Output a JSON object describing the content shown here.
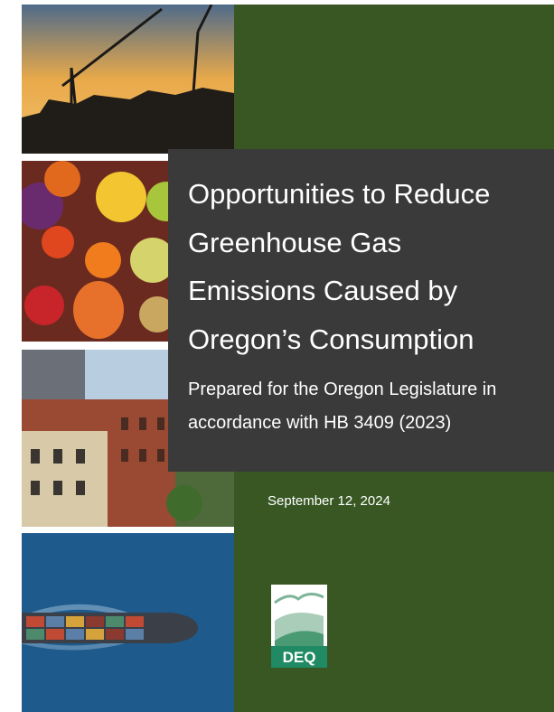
{
  "cover": {
    "title": "Opportunities to Reduce Greenhouse Gas Emissions Caused by Oregon’s Consumption",
    "subtitle": "Prepared for the Oregon Legislature in accordance with HB 3409 (2023)",
    "date": "September 12, 2024",
    "logo": "DEQ"
  }
}
